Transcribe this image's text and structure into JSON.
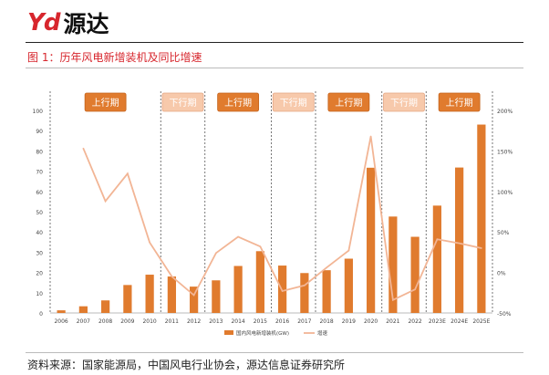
{
  "header": {
    "logo_mark": "Yd",
    "logo_text": "源达"
  },
  "figure": {
    "title": "图 1：历年风电新增装机及同比增速"
  },
  "source": {
    "text": "资料来源：国家能源局，中国风电行业协会，源达信息证券研究所"
  },
  "colors": {
    "bar": "#e07b2e",
    "line": "#f2b595",
    "brand_red": "#d7262d",
    "up_box": "#e07b2e",
    "down_box": "#f7c9ab"
  },
  "chart_data": {
    "type": "bar",
    "categories": [
      "2006",
      "2007",
      "2008",
      "2009",
      "2010",
      "2011",
      "2012",
      "2013",
      "2014",
      "2015",
      "2016",
      "2017",
      "2018",
      "2019",
      "2020",
      "2021",
      "2022",
      "2023E",
      "2024E",
      "2025E"
    ],
    "series": [
      {
        "name": "国内风电新增装机(GW)",
        "type": "bar",
        "axis": "left",
        "values": [
          1.3,
          3.3,
          6.2,
          13.8,
          18.9,
          18.0,
          13.0,
          16.1,
          23.2,
          30.5,
          23.4,
          19.7,
          21.1,
          26.8,
          71.7,
          47.6,
          37.6,
          53.0,
          71.8,
          93.0
        ]
      },
      {
        "name": "增速",
        "type": "line",
        "axis": "right",
        "values": [
          null,
          153,
          88,
          122,
          37,
          -5,
          -28,
          24,
          44,
          32,
          -23,
          -16,
          6,
          27,
          168,
          -34,
          -21,
          41,
          36,
          30
        ]
      }
    ],
    "ylim_left": [
      0,
      100
    ],
    "yticks_left": [
      "0",
      "10",
      "20",
      "30",
      "40",
      "50",
      "60",
      "70",
      "80",
      "90",
      "100"
    ],
    "ylim_right": [
      -50,
      200
    ],
    "yticks_right": [
      "-50%",
      "0%",
      "50%",
      "100%",
      "150%",
      "200%"
    ],
    "phases": [
      {
        "label": "上行期",
        "kind": "up",
        "from": "2006",
        "to": "2010"
      },
      {
        "label": "下行期",
        "kind": "down",
        "from": "2011",
        "to": "2012"
      },
      {
        "label": "上行期",
        "kind": "up",
        "from": "2013",
        "to": "2015"
      },
      {
        "label": "下行期",
        "kind": "down",
        "from": "2016",
        "to": "2017"
      },
      {
        "label": "上行期",
        "kind": "up",
        "from": "2018",
        "to": "2020"
      },
      {
        "label": "下行期",
        "kind": "down",
        "from": "2021",
        "to": "2022"
      },
      {
        "label": "上行期",
        "kind": "up",
        "from": "2023E",
        "to": "2025E"
      }
    ],
    "legend": {
      "position": "bottom"
    }
  }
}
